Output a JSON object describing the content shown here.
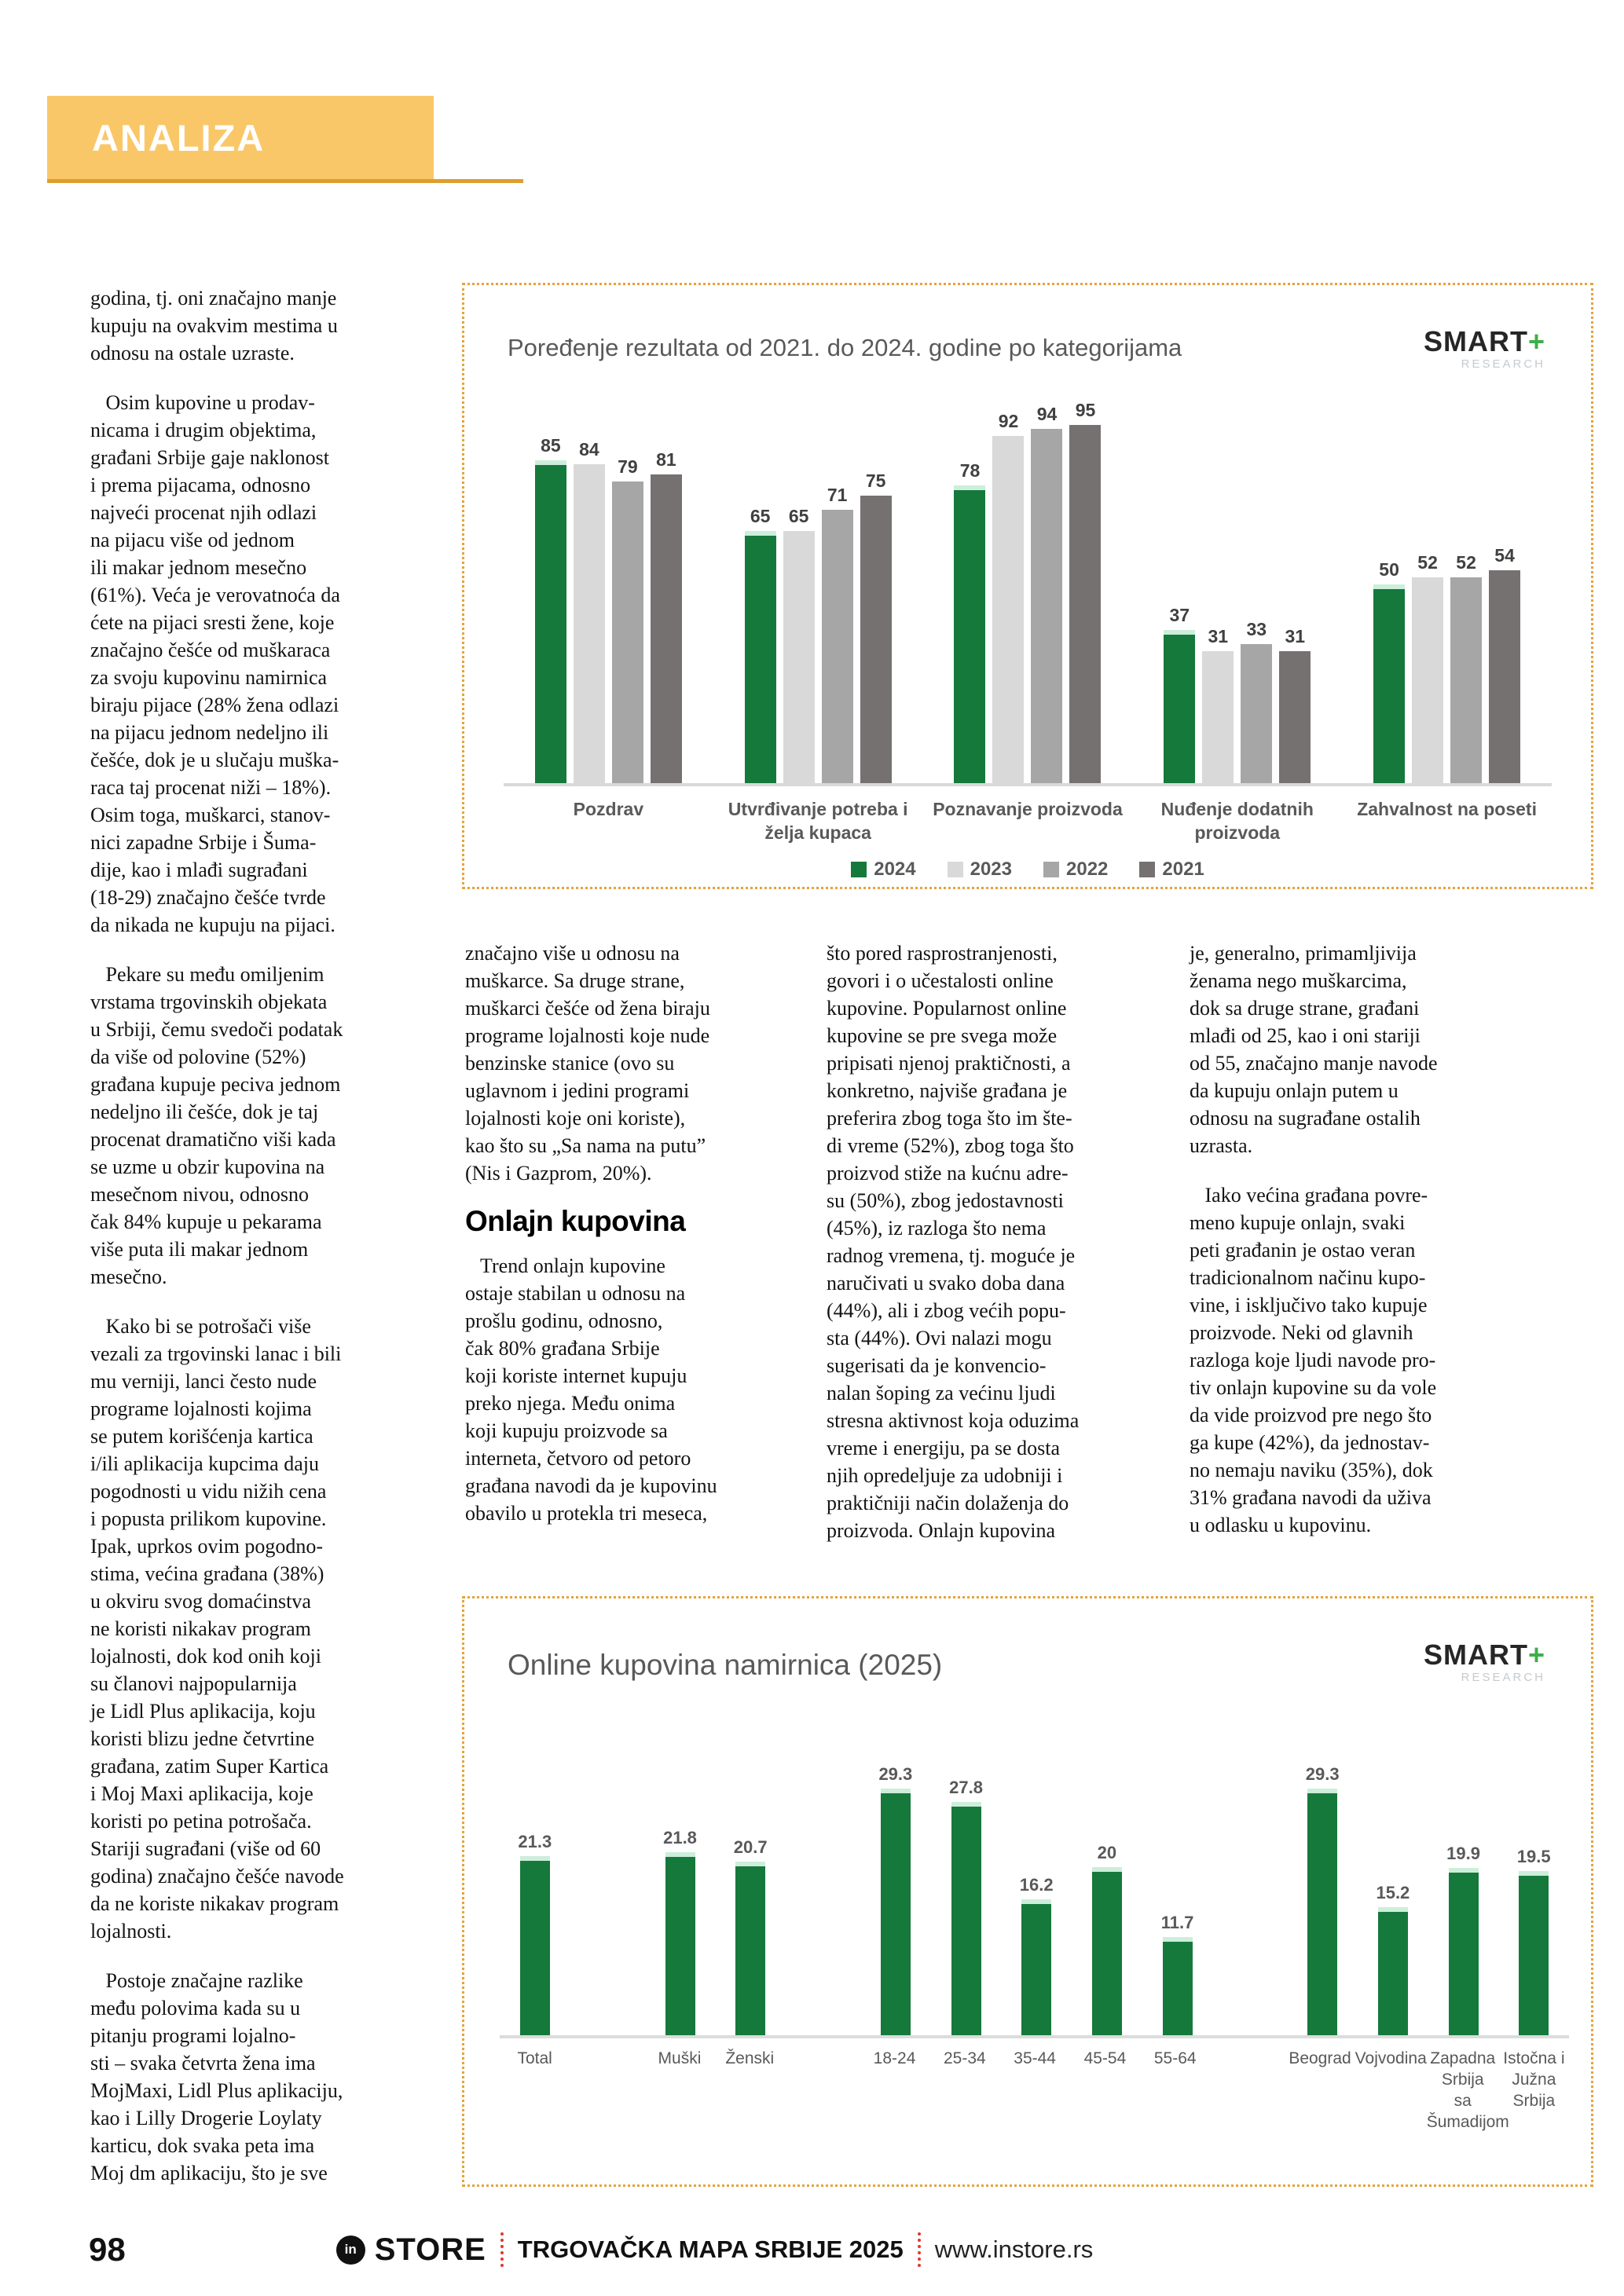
{
  "header": {
    "section_label": "ANALIZA"
  },
  "left_column": {
    "paragraphs": [
      "godina, tj. oni značajno manje\nkupuju na ovakvim mestima u\nodnosu na ostale uzraste.",
      "   Osim kupovine u prodav-\nnicama i drugim objektima,\ngrađani Srbije gaje naklonost\ni prema pijacama, odnosno\nnajveći procenat njih odlazi\nna pijacu više od jednom\nili makar jednom mesečno\n(61%). Veća je verovatnoća da\nćete na pijaci sresti žene, koje\nznačajno češće od muškaraca\nza svoju kupovinu namirnica\nbiraju pijace (28% žena odlazi\nna pijacu jednom nedeljno ili\nčešće, dok je u slučaju muška-\nraca taj procenat niži – 18%).\nOsim toga, muškarci, stanov-\nnici zapadne Srbije i Šuma-\ndije, kao i mlađi sugrađani\n(18-29) značajno češće tvrde\nda nikada ne kupuju na pijaci.",
      "   Pekare su među omiljenim\nvrstama trgovinskih objekata\nu Srbiji, čemu svedoči podatak\nda više od polovine (52%)\ngrađana kupuje peciva jednom\nnedeljno ili češće, dok je taj\nprocenat dramatično viši kada\nse uzme u obzir kupovina na\nmesečnom nivou, odnosno\nčak 84% kupuje u pekarama\nviše puta ili makar jednom\nmesečno.",
      "   Kako bi se potrošači više\nvezali za trgovinski lanac i bili\nmu verniji, lanci često nude\nprograme lojalnosti kojima\nse putem korišćenja kartica\ni/ili aplikacija kupcima daju\npogodnosti u vidu nižih cena\ni popusta prilikom kupovine.\nIpak, uprkos ovim pogodno-\nstima, većina građana (38%)\nu okviru svog domaćinstva\nne koristi nikakav program\nlojalnosti, dok kod onih koji\nsu članovi najpopularnija\nje Lidl Plus aplikacija, koju\nkoristi blizu jedne četvrtine\ngrađana, zatim Super Kartica\ni Moj Maxi aplikacija, koje\nkoristi po petina potrošača.\nStariji sugrađani (više od 60\ngodina) značajno češće navode\nda ne koriste nikakav program\nlojalnosti.",
      "   Postoje značajne razlike\nmeđu polovima kada su u\npitanju programi lojalno-\nsti – svaka četvrta žena ima\nMojMaxi, Lidl Plus aplikaciju,\nkao i Lilly Drogerie Loylaty\nkarticu, dok svaka peta ima\nMoj dm aplikaciju, što je sve"
    ]
  },
  "mid_columns": {
    "col1_top": "značajno više u odnosu na\nmuškarce. Sa druge strane,\nmuškarci češće od žena biraju\nprograme lojalnosti koje nude\nbenzinske stanice (ovo su\nuglavnom i jedini programi\nlojalnosti koje oni koriste),\nkao što su „Sa nama na putu”\n(Nis i Gazprom, 20%).",
    "heading": "Onlajn kupovina",
    "col1_bottom": "   Trend onlajn kupovine\nostaje stabilan u odnosu na\nprošlu godinu, odnosno,\nčak 80% građana Srbije\nkoji koriste internet kupuju\npreko njega. Među onima\nkoji kupuju proizvode sa\ninterneta, četvoro od petoro\ngrađana navodi da je kupovinu\nobavilo u protekla tri meseca,",
    "col2": "što pored rasprostranjenosti,\ngovori i o učestalosti online\nkupovine. Popularnost online\nkupovine se pre svega može\npripisati njenoj praktičnosti, a\nkonkretno, najviše građana je\npreferira zbog toga što im šte-\ndi vreme (52%), zbog toga što\nproizvod stiže na kućnu adre-\nsu (50%), zbog jedostavnosti\n(45%), iz razloga što nema\nradnog vremena, tj. moguće je\nnaručivati u svako doba dana\n(44%), ali i zbog većih popu-\nsta (44%). Ovi nalazi mogu\nsugerisati da je konvencio-\nnalan šoping za većinu ljudi\nstresna aktivnost koja oduzima\nvreme i energiju, pa se dosta\nnjih opredeljuje za udobniji i\npraktičniji način dolaženja do\nproizvoda. Onlajn kupovina",
    "col3_p1": "je, generalno, primamljivija\nženama nego muškarcima,\ndok sa druge strane, građani\nmlađi od 25, kao i oni stariji\nod 55, značajno manje navode\nda kupuju onlajn putem u\nodnosu na sugrađane ostalih\nuzrasta.",
    "col3_p2": "   Iako većina građana povre-\nmeno kupuje onlajn, svaki\npeti građanin je ostao veran\ntradicionalnom načinu kupo-\nvine, i isključivo tako kupuje\nproizvode. Neki od glavnih\nrazloga koje ljudi navode pro-\ntiv onlajn kupovine su da vole\nda vide proizvod pre nego što\nga kupe (42%), da jednostav-\nno nemaju naviku (35%), dok\n31% građana navodi da uživa\nu odlasku u kupovinu."
  },
  "smart_logo": {
    "name": "SMART",
    "plus": "+",
    "sub": "RESEARCH"
  },
  "chart_data": [
    {
      "type": "bar",
      "title": "Poređenje rezultata od 2021. do 2024. godine po kategorijama",
      "categories": [
        "Pozdrav",
        "Utvrđivanje potreba i\nželja kupaca",
        "Poznavanje proizvoda",
        "Nuđenje dodatnih\nproizvoda",
        "Zahvalnost na poseti"
      ],
      "series": [
        {
          "name": "2024",
          "color": "#15793c",
          "values": [
            85,
            65,
            78,
            37,
            50
          ]
        },
        {
          "name": "2023",
          "color": "#d9d9d9",
          "values": [
            84,
            65,
            92,
            31,
            52
          ]
        },
        {
          "name": "2022",
          "color": "#a6a6a6",
          "values": [
            79,
            71,
            94,
            33,
            52
          ]
        },
        {
          "name": "2021",
          "color": "#767171",
          "values": [
            81,
            75,
            95,
            31,
            54
          ]
        }
      ],
      "ylim": [
        0,
        100
      ],
      "grid": false,
      "legend_position": "bottom",
      "value_labels": true
    },
    {
      "type": "bar",
      "title": "Online kupovina namirnica (2025)",
      "categories": [
        "Total",
        "Muški",
        "Ženski",
        "18-24",
        "25-34",
        "35-44",
        "45-54",
        "55-64",
        "Beograd",
        "Vojvodina",
        "Zapadna\nSrbija\nsa\nŠumadijom",
        "Istočna i\nJužna\nSrbija"
      ],
      "values": [
        21.3,
        21.8,
        20.7,
        29.3,
        27.8,
        16.2,
        20,
        11.7,
        29.3,
        15.2,
        19.9,
        19.5
      ],
      "value_labels": [
        "21.3",
        "21.8",
        "20.7",
        "29.3",
        "27.8",
        "16.2",
        "20",
        "11.7",
        "29.3",
        "15.2",
        "19.9",
        "19.5"
      ],
      "groups": [
        [
          0
        ],
        [
          1,
          2
        ],
        [
          3,
          4,
          5,
          6,
          7
        ],
        [
          8,
          9,
          10,
          11
        ]
      ],
      "bar_color": "#15793c",
      "ylim": [
        0,
        32
      ],
      "grid": false
    }
  ],
  "footer": {
    "page_number": "98",
    "brand_circle": "in",
    "brand_store": "STORE",
    "publication": "TRGOVAČKA MAPA SRBIJE 2025",
    "website": "www.instore.rs"
  }
}
